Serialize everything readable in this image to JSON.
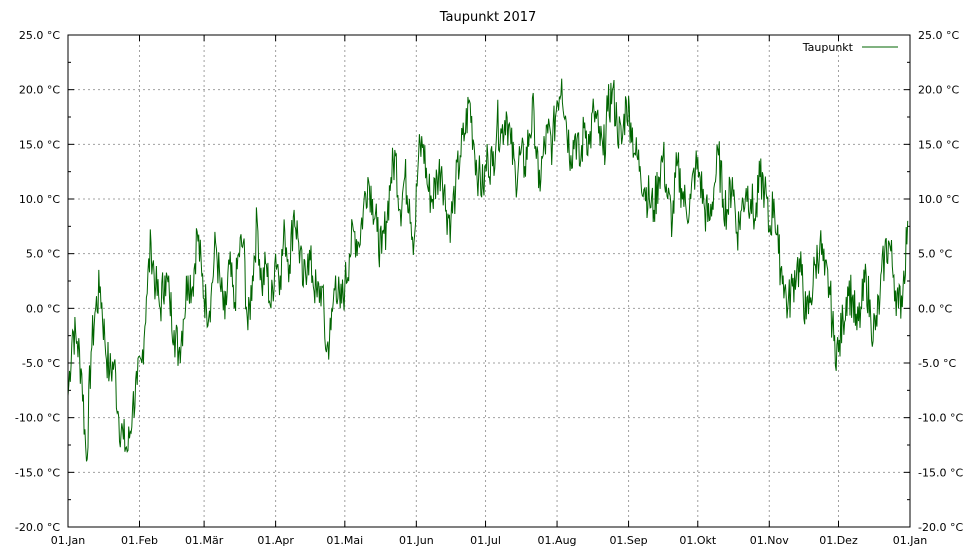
{
  "chart_data": {
    "type": "line",
    "title": "Taupunkt 2017",
    "xlabel": "",
    "ylabel": "",
    "x_ticks": [
      "01.Jan",
      "01.Feb",
      "01.Mär",
      "01.Apr",
      "01.Mai",
      "01.Jun",
      "01.Jul",
      "01.Aug",
      "01.Sep",
      "01.Okt",
      "01.Nov",
      "01.Dez",
      "01.Jan"
    ],
    "x_tick_days": [
      0,
      31,
      59,
      90,
      120,
      151,
      181,
      212,
      243,
      273,
      304,
      334,
      365
    ],
    "y_ticks": [
      "-20.0 °C",
      "-15.0 °C",
      "-10.0 °C",
      "-5.0 °C",
      "0.0 °C",
      "5.0 °C",
      "10.0 °C",
      "15.0 °C",
      "20.0 °C",
      "25.0 °C"
    ],
    "y_tick_values": [
      -20,
      -15,
      -10,
      -5,
      0,
      5,
      10,
      15,
      20,
      25
    ],
    "xlim_days": [
      0,
      365
    ],
    "ylim": [
      -20,
      25
    ],
    "grid": true,
    "legend_position": "top-right",
    "series": [
      {
        "name": "Taupunkt",
        "color": "#006400",
        "x_days": [
          0,
          2,
          4,
          6,
          8,
          10,
          12,
          14,
          16,
          18,
          20,
          22,
          24,
          26,
          28,
          30,
          32,
          34,
          36,
          38,
          40,
          42,
          44,
          46,
          48,
          50,
          52,
          54,
          56,
          58,
          60,
          62,
          64,
          66,
          68,
          70,
          72,
          74,
          76,
          78,
          80,
          82,
          84,
          86,
          88,
          90,
          92,
          94,
          96,
          98,
          100,
          102,
          104,
          106,
          108,
          110,
          112,
          114,
          116,
          118,
          120,
          122,
          124,
          126,
          128,
          130,
          132,
          134,
          136,
          138,
          140,
          142,
          144,
          146,
          148,
          150,
          152,
          154,
          156,
          158,
          160,
          162,
          164,
          166,
          168,
          170,
          172,
          174,
          176,
          178,
          180,
          182,
          184,
          186,
          188,
          190,
          192,
          194,
          196,
          198,
          200,
          202,
          204,
          206,
          208,
          210,
          212,
          214,
          216,
          218,
          220,
          222,
          224,
          226,
          228,
          230,
          232,
          234,
          236,
          238,
          240,
          242,
          244,
          246,
          248,
          250,
          252,
          254,
          256,
          258,
          260,
          262,
          264,
          266,
          268,
          270,
          272,
          274,
          276,
          278,
          280,
          282,
          284,
          286,
          288,
          290,
          292,
          294,
          296,
          298,
          300,
          302,
          304,
          306,
          308,
          310,
          312,
          314,
          316,
          318,
          320,
          322,
          324,
          326,
          328,
          330,
          332,
          334,
          336,
          338,
          340,
          342,
          344,
          346,
          348,
          350,
          352,
          354,
          356,
          358,
          360,
          362,
          364
        ],
        "values": [
          -8,
          -2,
          -3,
          -6,
          -14,
          -4,
          0,
          2,
          -3,
          -6,
          -5,
          -10,
          -12,
          -13,
          -9,
          -7,
          -5,
          1,
          6,
          2,
          0,
          3,
          1,
          -2,
          -4,
          -1,
          3,
          2,
          7,
          3,
          0,
          1,
          6,
          2,
          -1,
          4,
          0,
          5,
          6,
          -2,
          3,
          8,
          2,
          4,
          0,
          5,
          3,
          7,
          4,
          9,
          6,
          2,
          5,
          3,
          1,
          2,
          -4,
          -2,
          3,
          0,
          2,
          5,
          7,
          6,
          9,
          12,
          10,
          7,
          5,
          8,
          12,
          14,
          9,
          12,
          10,
          6,
          14,
          15,
          11,
          10,
          12,
          13,
          9,
          8,
          11,
          14,
          16,
          19,
          15,
          12,
          11,
          14,
          13,
          17,
          16,
          18,
          15,
          12,
          14,
          13,
          16,
          18,
          11,
          14,
          16,
          15,
          19,
          21,
          17,
          14,
          16,
          13,
          17,
          15,
          18,
          16,
          14,
          18,
          20,
          17,
          15,
          19,
          17,
          14,
          13,
          11,
          10,
          9,
          12,
          14,
          10,
          8,
          13,
          11,
          9,
          10,
          13,
          12,
          9,
          8,
          11,
          14,
          10,
          9,
          12,
          7,
          9,
          11,
          10,
          8,
          12,
          11,
          7,
          10,
          5,
          3,
          0,
          2,
          4,
          3,
          -1,
          1,
          4,
          6,
          3,
          2,
          -3,
          -4,
          -1,
          2,
          1,
          -2,
          0,
          3,
          -1,
          -2,
          1,
          5,
          6,
          3,
          0,
          2,
          8
        ]
      }
    ]
  }
}
